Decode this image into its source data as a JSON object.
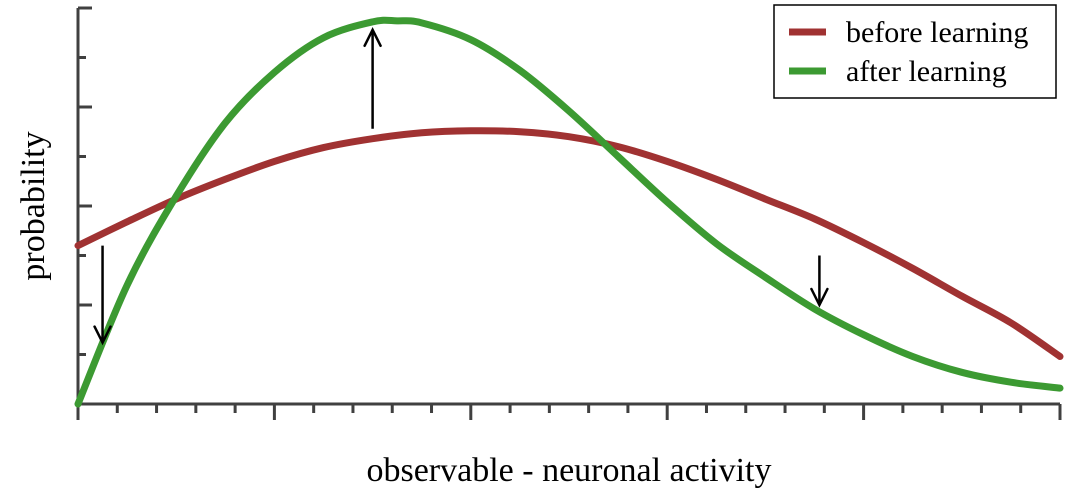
{
  "chart_data": {
    "type": "line",
    "title": "",
    "xlabel": "observable - neuronal activity",
    "ylabel": "probability",
    "xlim": [
      0,
      10
    ],
    "ylim": [
      0,
      4
    ],
    "grid": false,
    "legend_position": "top-right",
    "series": [
      {
        "name": "before learning",
        "color": "#a03232",
        "x": [
          0,
          0.5,
          1,
          1.5,
          2,
          2.5,
          3,
          3.5,
          4,
          4.5,
          5,
          5.5,
          6,
          6.5,
          7,
          7.5,
          8,
          8.5,
          9,
          9.5,
          10
        ],
        "y": [
          1.6,
          1.84,
          2.07,
          2.27,
          2.45,
          2.59,
          2.68,
          2.74,
          2.76,
          2.75,
          2.7,
          2.6,
          2.45,
          2.27,
          2.07,
          1.87,
          1.63,
          1.37,
          1.09,
          0.82,
          0.48
        ]
      },
      {
        "name": "after learning",
        "color": "#3c9a32",
        "x": [
          0,
          0.5,
          1,
          1.5,
          2,
          2.5,
          3,
          3.25,
          3.5,
          4,
          4.5,
          5,
          5.5,
          6,
          6.5,
          7,
          7.5,
          8,
          8.5,
          9,
          9.5,
          10
        ],
        "y": [
          0,
          1.2,
          2.1,
          2.84,
          3.35,
          3.7,
          3.86,
          3.87,
          3.85,
          3.68,
          3.37,
          2.96,
          2.5,
          2.04,
          1.62,
          1.28,
          0.96,
          0.7,
          0.48,
          0.32,
          0.22,
          0.16
        ]
      }
    ],
    "annotations": [
      {
        "type": "arrow",
        "direction": "down",
        "x": 0.25,
        "y_from": 1.6,
        "y_to": 0.62
      },
      {
        "type": "arrow",
        "direction": "up",
        "x": 3.0,
        "y_from": 2.78,
        "y_to": 3.78
      },
      {
        "type": "arrow",
        "direction": "down",
        "x": 7.55,
        "y_from": 1.5,
        "y_to": 1.0
      }
    ]
  }
}
